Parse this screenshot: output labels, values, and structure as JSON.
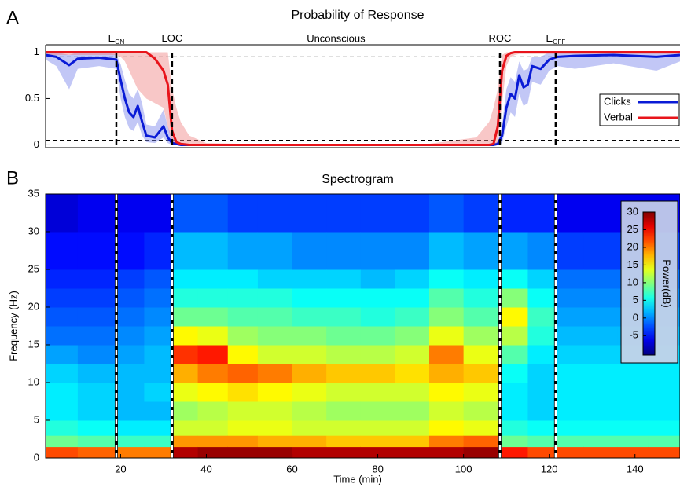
{
  "chart_data": [
    {
      "type": "line",
      "panel": "A",
      "title": "Probability of Response",
      "xlim": [
        2.5,
        150.5
      ],
      "ylim": [
        -0.03,
        1.08
      ],
      "yticks": [
        0,
        0.5,
        1
      ],
      "hlines": [
        0.05,
        0.95
      ],
      "legend": "right",
      "annotation": "Unconscious",
      "events": [
        {
          "x": 19,
          "label": "E",
          "sub": "ON"
        },
        {
          "x": 32,
          "label": "LOC"
        },
        {
          "x": 108.5,
          "label": "ROC"
        },
        {
          "x": 121.5,
          "label": "E",
          "sub": "OFF"
        }
      ],
      "x": [
        2.5,
        5,
        8,
        10,
        15,
        19,
        20,
        21,
        22,
        23,
        24,
        25,
        26,
        28,
        30,
        31,
        32,
        33,
        34,
        36,
        40,
        60,
        90,
        103,
        106,
        107,
        108,
        109,
        110,
        111,
        112,
        113,
        114,
        115,
        116,
        118,
        120,
        122,
        126,
        135,
        145,
        150.5
      ],
      "series": [
        {
          "name": "Clicks",
          "color": "#0a1bd6",
          "band_color": "rgba(120,130,235,0.45)",
          "values": [
            0.97,
            0.95,
            0.86,
            0.93,
            0.94,
            0.92,
            0.7,
            0.5,
            0.35,
            0.3,
            0.42,
            0.25,
            0.1,
            0.08,
            0.2,
            0.08,
            0.02,
            0.01,
            0,
            0,
            0,
            0,
            0,
            0,
            0,
            0,
            0.01,
            0.1,
            0.4,
            0.55,
            0.5,
            0.75,
            0.62,
            0.65,
            0.85,
            0.82,
            0.92,
            0.95,
            0.96,
            0.97,
            0.95,
            0.97
          ],
          "lower": [
            0.92,
            0.85,
            0.6,
            0.82,
            0.85,
            0.82,
            0.5,
            0.3,
            0.18,
            0.15,
            0.25,
            0.1,
            0.03,
            0.02,
            0.08,
            0.02,
            0,
            0,
            0,
            0,
            0,
            0,
            0,
            0,
            0,
            0,
            0,
            0.02,
            0.2,
            0.35,
            0.3,
            0.55,
            0.42,
            0.45,
            0.68,
            0.65,
            0.8,
            0.85,
            0.82,
            0.88,
            0.8,
            0.9
          ],
          "upper": [
            1,
            1,
            0.97,
            1,
            1,
            0.98,
            0.87,
            0.7,
            0.55,
            0.5,
            0.6,
            0.45,
            0.22,
            0.2,
            0.38,
            0.2,
            0.08,
            0.04,
            0.01,
            0,
            0,
            0,
            0,
            0,
            0,
            0.01,
            0.04,
            0.22,
            0.6,
            0.73,
            0.68,
            0.9,
            0.8,
            0.82,
            0.95,
            0.95,
            1,
            1,
            1,
            1,
            1,
            1
          ]
        },
        {
          "name": "Verbal",
          "color": "#e8141b",
          "band_color": "rgba(240,130,130,0.45)",
          "values": [
            1,
            1,
            1,
            1,
            1,
            1,
            1,
            1,
            1,
            1,
            1,
            1,
            1,
            0.93,
            0.8,
            0.65,
            0.15,
            0.03,
            0.01,
            0,
            0,
            0,
            0,
            0,
            0,
            0.01,
            0.2,
            0.8,
            0.96,
            0.99,
            1,
            1,
            1,
            1,
            1,
            1,
            1,
            1,
            1,
            1,
            1,
            1
          ],
          "lower": [
            0.97,
            0.97,
            0.97,
            0.97,
            0.97,
            0.97,
            0.95,
            0.9,
            0.8,
            0.7,
            0.6,
            0.55,
            0.5,
            0.45,
            0.4,
            0.2,
            0.02,
            0,
            0,
            0,
            0,
            0,
            0,
            0,
            0,
            0,
            0,
            0.45,
            0.85,
            0.95,
            0.97,
            0.98,
            0.98,
            0.98,
            0.98,
            0.98,
            0.98,
            0.98,
            0.98,
            0.98,
            0.98,
            0.98
          ],
          "upper": [
            1,
            1,
            1,
            1,
            1,
            1,
            1,
            1,
            1,
            1,
            1,
            1,
            1,
            1,
            1,
            1,
            0.6,
            0.4,
            0.25,
            0.1,
            0.02,
            0,
            0,
            0.08,
            0.25,
            0.4,
            0.6,
            0.97,
            1,
            1,
            1,
            1,
            1,
            1,
            1,
            1,
            1,
            1,
            1,
            1,
            1,
            1
          ]
        }
      ]
    },
    {
      "type": "heatmap",
      "panel": "B",
      "title": "Spectrogram",
      "xlabel": "Time (min)",
      "ylabel": "Frequency (Hz)",
      "xlim": [
        2.5,
        150.5
      ],
      "ylim": [
        0,
        35
      ],
      "xticks": [
        20,
        40,
        60,
        80,
        100,
        120,
        140
      ],
      "yticks": [
        0,
        5,
        10,
        15,
        20,
        25,
        30,
        35
      ],
      "vlines": [
        19,
        32,
        108.5,
        121.5
      ],
      "colorbar_label": "Power(dB)",
      "clim": [
        -10.5,
        30
      ],
      "cticks": [
        -5,
        0,
        5,
        10,
        15,
        20,
        25,
        30
      ],
      "x_edges": [
        2.5,
        10,
        19,
        25.5,
        32,
        38,
        45,
        52,
        60,
        68,
        76,
        84,
        92,
        100,
        108.5,
        115,
        121.5,
        128,
        136,
        143,
        150.5
      ],
      "y_edges": [
        0,
        1.5,
        3,
        5,
        7.5,
        10,
        12.5,
        15,
        17.5,
        20,
        22.5,
        25,
        30,
        35
      ],
      "values": [
        [
          22,
          9,
          6,
          4,
          4,
          3,
          1,
          -1,
          -2,
          -3,
          -4,
          -5,
          -7
        ],
        [
          21,
          8,
          5,
          3,
          3,
          2,
          0,
          -1,
          -2,
          -3,
          -4,
          -5,
          -6
        ],
        [
          20,
          7,
          4,
          2,
          2,
          2,
          1,
          0,
          -1,
          -2,
          -3,
          -5,
          -6
        ],
        [
          20,
          7,
          4,
          2,
          3,
          2,
          2,
          1,
          0,
          -1,
          -2,
          -4,
          -6
        ],
        [
          28,
          19,
          13,
          11,
          14,
          18,
          23,
          15,
          9,
          6,
          4,
          2,
          -2
        ],
        [
          29,
          19,
          13,
          12,
          15,
          20,
          24,
          14,
          9,
          6,
          4,
          2,
          -2
        ],
        [
          29,
          19,
          14,
          13,
          16,
          21,
          15,
          11,
          8,
          6,
          4,
          1,
          -3
        ],
        [
          29,
          18,
          14,
          13,
          15,
          20,
          13,
          10,
          8,
          6,
          3,
          1,
          -3
        ],
        [
          28,
          18,
          13,
          12,
          14,
          18,
          13,
          10,
          7,
          5,
          3,
          0,
          -3
        ],
        [
          28,
          17,
          13,
          11,
          13,
          17,
          12,
          9,
          7,
          5,
          3,
          0,
          -3
        ],
        [
          28,
          17,
          13,
          11,
          13,
          17,
          12,
          9,
          6,
          5,
          2,
          0,
          -3
        ],
        [
          28,
          17,
          13,
          11,
          13,
          16,
          13,
          10,
          7,
          5,
          3,
          0,
          -3
        ],
        [
          28,
          20,
          15,
          13,
          15,
          18,
          20,
          14,
          10,
          8,
          5,
          2,
          -2
        ],
        [
          29,
          21,
          14,
          12,
          14,
          17,
          14,
          11,
          8,
          6,
          4,
          1,
          -3
        ],
        [
          24,
          9,
          6,
          4,
          4,
          5,
          8,
          12,
          15,
          10,
          5,
          1,
          -4
        ],
        [
          22,
          8,
          5,
          3,
          3,
          3,
          4,
          6,
          7,
          5,
          3,
          0,
          -4
        ],
        [
          22,
          8,
          5,
          4,
          4,
          4,
          3,
          2,
          1,
          0,
          -1,
          -3,
          -6
        ],
        [
          22,
          8,
          5,
          4,
          4,
          4,
          3,
          2,
          1,
          0,
          -1,
          -3,
          -6
        ],
        [
          22,
          8,
          5,
          4,
          4,
          4,
          3,
          2,
          1,
          0,
          -1,
          -3,
          -6
        ],
        [
          22,
          8,
          5,
          4,
          4,
          4,
          3,
          2,
          1,
          0,
          -1,
          -3,
          -6
        ]
      ]
    }
  ]
}
